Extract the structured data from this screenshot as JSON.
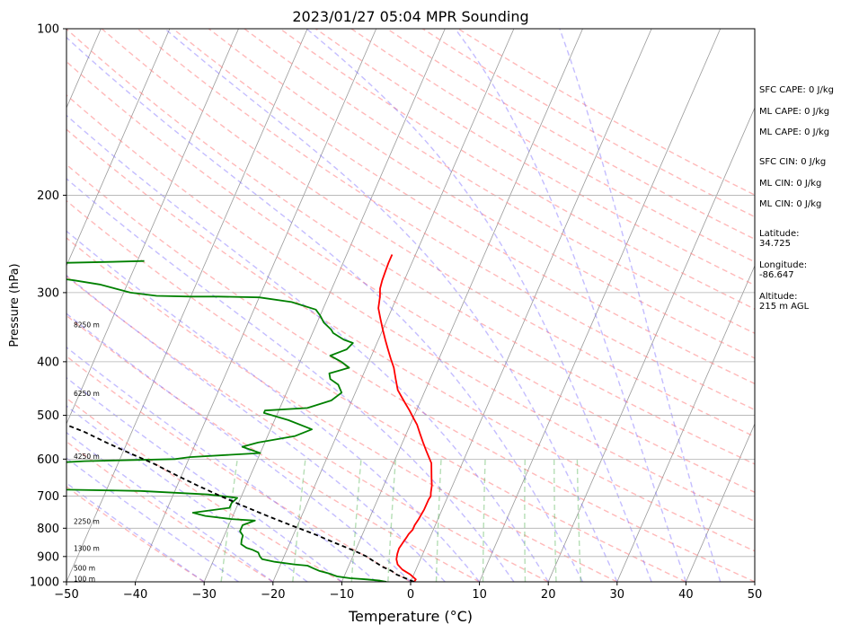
{
  "chart_data": {
    "type": "line",
    "title": "2023/01/27 05:04 MPR Sounding",
    "xlabel": "Temperature (°C)",
    "ylabel": "Pressure (hPa)",
    "xlim": [
      -50,
      50
    ],
    "ylim": [
      1000,
      100
    ],
    "y_scale": "log",
    "x_ticks": [
      "−50",
      "−40",
      "−30",
      "−20",
      "−10",
      "0",
      "10",
      "20",
      "30",
      "40",
      "50"
    ],
    "y_ticks": [
      "100",
      "200",
      "300",
      "400",
      "500",
      "600",
      "700",
      "800",
      "900",
      "1000"
    ],
    "grid": "horizontal at pressure ticks",
    "skew": "skew-T log-p",
    "series": [
      {
        "color": "#ff0000",
        "points": [
          [
            0.5,
            1000
          ],
          [
            0.6,
            990
          ],
          [
            -0.5,
            970
          ],
          [
            -2,
            950
          ],
          [
            -3,
            930
          ],
          [
            -3.5,
            910
          ],
          [
            -3.7,
            890
          ],
          [
            -3.8,
            870
          ],
          [
            -3.6,
            850
          ],
          [
            -3.4,
            830
          ],
          [
            -3.3,
            820
          ],
          [
            -3,
            805
          ],
          [
            -3,
            790
          ],
          [
            -2.8,
            770
          ],
          [
            -2.7,
            755
          ],
          [
            -2.6,
            740
          ],
          [
            -2.6,
            725
          ],
          [
            -2.6,
            710
          ],
          [
            -2.5,
            700
          ],
          [
            -2.7,
            690
          ],
          [
            -3,
            670
          ],
          [
            -3.5,
            650
          ],
          [
            -4,
            630
          ],
          [
            -4.5,
            610
          ],
          [
            -5,
            600
          ],
          [
            -6,
            580
          ],
          [
            -7,
            560
          ],
          [
            -8,
            540
          ],
          [
            -9,
            520
          ],
          [
            -10,
            505
          ],
          [
            -11,
            490
          ],
          [
            -12.5,
            470
          ],
          [
            -14,
            450
          ],
          [
            -15,
            430
          ],
          [
            -16,
            410
          ],
          [
            -17,
            395
          ],
          [
            -18,
            380
          ],
          [
            -19,
            365
          ],
          [
            -20,
            350
          ],
          [
            -21,
            335
          ],
          [
            -22,
            320
          ],
          [
            -22.5,
            305
          ],
          [
            -23,
            295
          ],
          [
            -23.2,
            285
          ],
          [
            -23.3,
            275
          ],
          [
            -23.4,
            265
          ],
          [
            -23.4,
            256
          ]
        ]
      },
      {
        "color": "#008000",
        "points": [
          [
            -3.5,
            1000
          ],
          [
            -4.5,
            995
          ],
          [
            -6.5,
            990
          ],
          [
            -9,
            985
          ],
          [
            -11,
            978
          ],
          [
            -12.5,
            965
          ],
          [
            -14,
            955
          ],
          [
            -15,
            945
          ],
          [
            -16,
            935
          ],
          [
            -18,
            930
          ],
          [
            -21,
            920
          ],
          [
            -23,
            910
          ],
          [
            -23.5,
            900
          ],
          [
            -24,
            885
          ],
          [
            -25,
            875
          ],
          [
            -26,
            868
          ],
          [
            -27,
            855
          ],
          [
            -27.2,
            840
          ],
          [
            -27.3,
            825
          ],
          [
            -28,
            810
          ],
          [
            -28,
            790
          ],
          [
            -26.5,
            775
          ],
          [
            -30,
            770
          ],
          [
            -34,
            760
          ],
          [
            -36,
            750
          ],
          [
            -31,
            735
          ],
          [
            -31,
            720
          ],
          [
            -30.5,
            705
          ],
          [
            -35,
            695
          ],
          [
            -45,
            685
          ],
          [
            -60,
            680
          ],
          [
            -72,
            675
          ],
          [
            -75,
            670
          ],
          [
            -74,
            650
          ],
          [
            -72,
            640
          ],
          [
            -70,
            630
          ],
          [
            -65,
            615
          ],
          [
            -55,
            605
          ],
          [
            -42,
            600
          ],
          [
            -40,
            595
          ],
          [
            -30,
            585
          ],
          [
            -33,
            570
          ],
          [
            -31,
            560
          ],
          [
            -26,
            545
          ],
          [
            -24,
            530
          ],
          [
            -28,
            510
          ],
          [
            -32,
            495
          ],
          [
            -32,
            490
          ],
          [
            -26,
            485
          ],
          [
            -23,
            470
          ],
          [
            -22,
            455
          ],
          [
            -23,
            440
          ],
          [
            -24.5,
            430
          ],
          [
            -25,
            420
          ],
          [
            -22.5,
            410
          ],
          [
            -24,
            400
          ],
          [
            -26,
            390
          ],
          [
            -24,
            380
          ],
          [
            -23.5,
            370
          ],
          [
            -25,
            365
          ],
          [
            -27,
            355
          ],
          [
            -27.5,
            350
          ],
          [
            -29,
            340
          ],
          [
            -30,
            330
          ],
          [
            -31,
            322
          ],
          [
            -35,
            312
          ],
          [
            -40,
            306
          ],
          [
            -46,
            305
          ],
          [
            -50,
            305
          ],
          [
            -55,
            304
          ],
          [
            -59,
            300
          ],
          [
            -64,
            290
          ],
          [
            -68,
            285
          ],
          [
            -70,
            283
          ],
          [
            -71,
            281
          ],
          [
            -72,
            281
          ],
          [
            -73,
            280
          ],
          [
            -74,
            280
          ],
          [
            -75,
            280
          ],
          [
            -80,
            275
          ],
          [
            -82,
            273
          ],
          [
            -83,
            270
          ],
          [
            -84,
            268
          ],
          [
            -84,
            266
          ],
          [
            -70,
            265
          ],
          [
            -64,
            264
          ],
          [
            -59,
            263
          ]
        ]
      },
      {
        "color": "#000000",
        "points": [
          [
            0.5,
            1000
          ],
          [
            -1,
            985
          ],
          [
            -2.5,
            970
          ],
          [
            -3.5,
            955
          ],
          [
            -5,
            940
          ],
          [
            -6.5,
            920
          ],
          [
            -8,
            900
          ],
          [
            -10,
            880
          ],
          [
            -13.5,
            850
          ],
          [
            -17,
            820
          ],
          [
            -21,
            790
          ],
          [
            -25,
            760
          ],
          [
            -29,
            730
          ],
          [
            -33,
            700
          ],
          [
            -37,
            670
          ],
          [
            -41,
            640
          ],
          [
            -45,
            610
          ],
          [
            -49,
            585
          ],
          [
            -53,
            560
          ],
          [
            -57,
            535
          ],
          [
            -61,
            515
          ],
          [
            -65,
            495
          ],
          [
            -69,
            475
          ],
          [
            -73,
            455
          ],
          [
            -77,
            438
          ],
          [
            -81,
            420
          ],
          [
            -85,
            405
          ],
          [
            -89,
            390
          ],
          [
            -93,
            376
          ],
          [
            -97,
            362
          ],
          [
            -101,
            350
          ],
          [
            -105,
            338
          ],
          [
            -109,
            326
          ],
          [
            -113,
            315
          ],
          [
            -117,
            305
          ],
          [
            -121,
            296
          ]
        ]
      }
    ],
    "height_labels": [
      "100 m",
      "500 m",
      "1300 m",
      "2250 m",
      "4250 m",
      "6250 m",
      "8250 m"
    ],
    "height_label_pressures": [
      987,
      943,
      869,
      777,
      593,
      456,
      343
    ],
    "legend": "none"
  },
  "info": {
    "sfc_cape": "SFC CAPE: 0 J/kg",
    "ml_cape_1": "ML CAPE: 0 J/kg",
    "ml_cape_2": "ML CAPE: 0 J/kg",
    "sfc_cin": "SFC CIN: 0 J/kg",
    "ml_cin_1": "ML CIN: 0 J/kg",
    "ml_cin_2": "ML CIN: 0 J/kg",
    "latitude": "Latitude:\n34.725",
    "longitude": "Longitude:\n-86.647",
    "altitude": "Altitude:\n215 m AGL"
  }
}
